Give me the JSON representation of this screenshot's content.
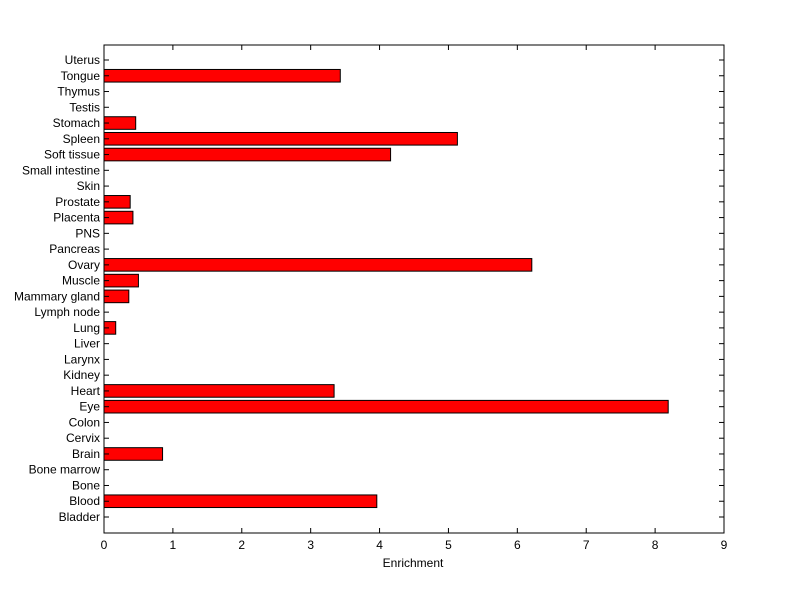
{
  "chart_data": {
    "type": "bar",
    "orientation": "horizontal",
    "title": "",
    "xlabel": "Enrichment",
    "ylabel": "",
    "xlim": [
      0,
      9
    ],
    "xticks": [
      0,
      1,
      2,
      3,
      4,
      5,
      6,
      7,
      8,
      9
    ],
    "grid": false,
    "legend": "none",
    "bar_color": "#ff0000",
    "bar_edge_color": "#000000",
    "categories": [
      "Bladder",
      "Blood",
      "Bone",
      "Bone marrow",
      "Brain",
      "Cervix",
      "Colon",
      "Eye",
      "Heart",
      "Kidney",
      "Larynx",
      "Liver",
      "Lung",
      "Lymph node",
      "Mammary gland",
      "Muscle",
      "Ovary",
      "Pancreas",
      "PNS",
      "Placenta",
      "Prostate",
      "Skin",
      "Small intestine",
      "Soft tissue",
      "Spleen",
      "Stomach",
      "Testis",
      "Thymus",
      "Tongue",
      "Uterus"
    ],
    "values": [
      0,
      3.96,
      0,
      0,
      0.85,
      0,
      0,
      8.19,
      3.34,
      0,
      0,
      0,
      0.17,
      0,
      0.36,
      0.5,
      6.21,
      0,
      0,
      0.42,
      0.38,
      0,
      0,
      4.16,
      5.13,
      0.46,
      0,
      0,
      3.43,
      0
    ]
  }
}
